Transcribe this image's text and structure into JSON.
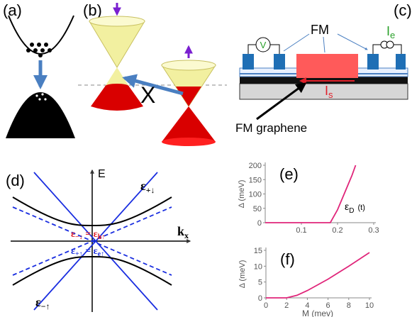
{
  "panel_a": {
    "label": "(a)"
  },
  "panel_b": {
    "label": "(b)",
    "cross": "X"
  },
  "panel_c": {
    "label": "(c)",
    "fm": "FM",
    "voltmeter": "V",
    "current_e": {
      "symbol": "I",
      "sub": "e"
    },
    "current_s": {
      "symbol": "I",
      "sub": "s"
    },
    "fm_graphene": "FM graphene"
  },
  "panel_d": {
    "label": "(d)",
    "energy_axis": "E",
    "momentum_axis": {
      "symbol": "k",
      "sub": "x"
    },
    "top_band": {
      "symbol": "ε",
      "sub": "+↓"
    },
    "hole_relation": {
      "left": "ε",
      "left_sub": "−↓",
      "eq": " = ",
      "right": "ε",
      "right_sub": "h↑"
    },
    "electron_relation": {
      "left": "ε",
      "left_sub": "+↑",
      "eq": " = ",
      "right": "ε",
      "right_sub": "e↑"
    },
    "bottom_band": {
      "symbol": "ε",
      "sub": "−↑"
    }
  },
  "chart_data": [
    {
      "type": "line",
      "label": "(e)",
      "y_label": "Δ (meV)",
      "annotation": {
        "symbol": "ε",
        "sub": "D",
        "unit": "(t)"
      },
      "x": [
        0,
        0.1,
        0.18,
        0.2,
        0.22,
        0.24,
        0.25
      ],
      "series": [
        {
          "color": "#e0257a",
          "values": [
            0,
            0,
            0,
            45,
            105,
            165,
            200
          ]
        }
      ],
      "xlim": [
        0,
        0.3
      ],
      "ylim": [
        0,
        200
      ],
      "xticks": [
        0.1,
        0.2,
        0.3
      ],
      "yticks": [
        0,
        50,
        100,
        150,
        200
      ]
    },
    {
      "type": "line",
      "label": "(f)",
      "y_label": "Δ (meV)",
      "x_label": "M (mev)",
      "x": [
        0,
        2,
        3,
        4,
        6,
        8,
        10
      ],
      "series": [
        {
          "color": "#e0257a",
          "values": [
            0,
            0,
            0.8,
            2.3,
            5.9,
            10,
            14.3
          ]
        }
      ],
      "xlim": [
        0,
        10
      ],
      "ylim": [
        0,
        15
      ],
      "xticks": [
        0,
        2,
        4,
        6,
        8,
        10
      ],
      "yticks": [
        0,
        5,
        10,
        15
      ]
    }
  ]
}
